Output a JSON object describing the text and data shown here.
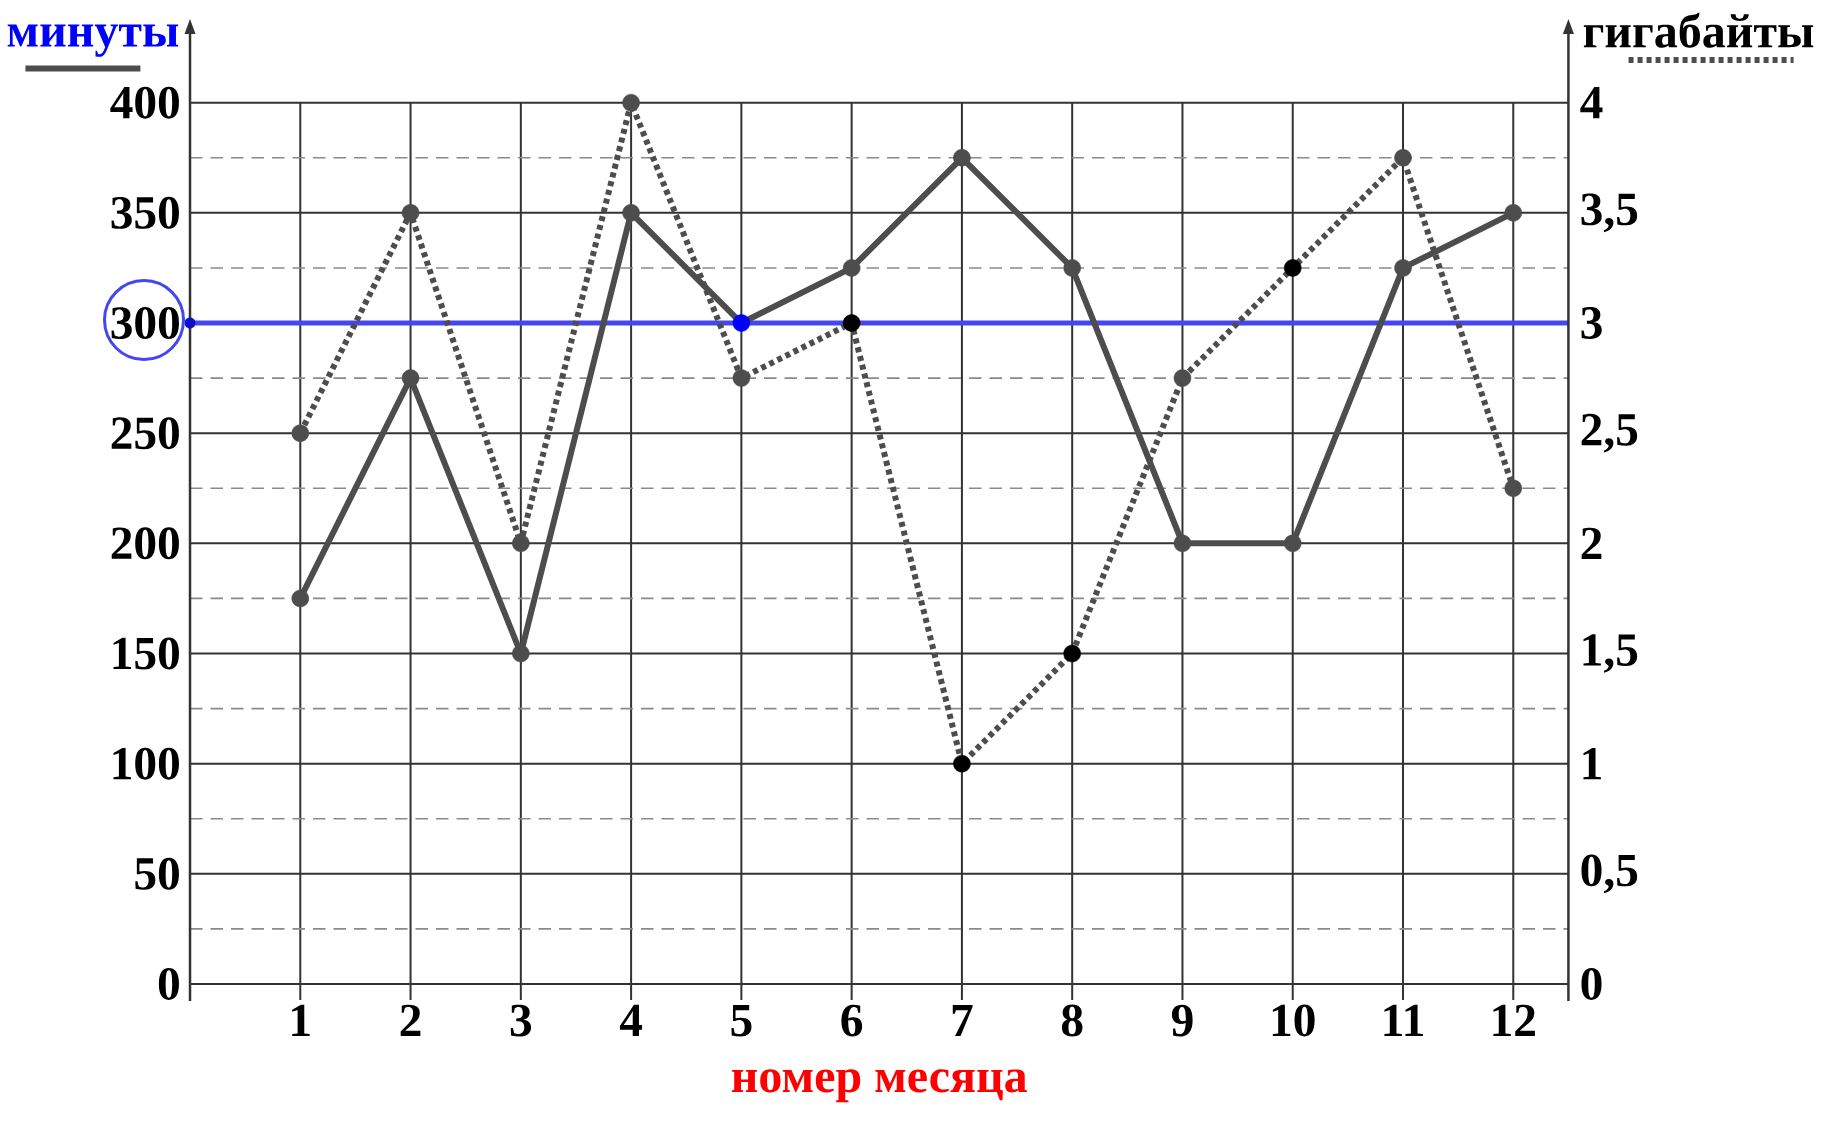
{
  "chart_data": {
    "type": "line",
    "xlabel": "номер месяца",
    "x": [
      1,
      2,
      3,
      4,
      5,
      6,
      7,
      8,
      9,
      10,
      11,
      12
    ],
    "xlim": [
      0,
      12.5
    ],
    "xticks": [
      1,
      2,
      3,
      4,
      5,
      6,
      7,
      8,
      9,
      10,
      11,
      12
    ],
    "ylim": [
      0,
      400
    ],
    "yticks": [
      0,
      {
        "value": 25,
        "label": null
      },
      50,
      {
        "value": 75,
        "label": null
      },
      100,
      {
        "value": 125,
        "label": null
      },
      150,
      {
        "value": 175,
        "label": null
      },
      200,
      {
        "value": 225,
        "label": null
      },
      250,
      {
        "value": 275,
        "label": null
      },
      300,
      {
        "value": 325,
        "label": null
      },
      350,
      {
        "value": 375,
        "label": null
      },
      400
    ],
    "y2lim": [
      0,
      4
    ],
    "y2ticks": [
      0,
      {
        "value": 0.5,
        "label": "0,5"
      },
      1,
      {
        "value": 1.5,
        "label": "1,5"
      },
      2,
      {
        "value": 2.5,
        "label": "2,5"
      },
      3,
      {
        "value": 3.5,
        "label": "3,5"
      },
      4
    ],
    "grid": true,
    "legend": "top",
    "marker": "circle",
    "ref_lines": [
      {
        "axis": "y",
        "value": 300,
        "color": "#4646f0"
      }
    ],
    "series": [
      {
        "name": "минуты",
        "color": "#4d4d4d",
        "line_style": "solid",
        "values": [
          175,
          275,
          150,
          350,
          300,
          325,
          375,
          325,
          200,
          200,
          325,
          350
        ],
        "colors": [
          "#4d4d4d",
          "#4d4d4d",
          "#4d4d4d",
          "#4d4d4d",
          "#0000ff",
          "#4d4d4d",
          "#4d4d4d",
          "#4d4d4d",
          "#4d4d4d",
          "#4d4d4d",
          "#4d4d4d",
          "#4d4d4d"
        ]
      },
      {
        "name": "гигабайты",
        "color": "#4d4d4d",
        "axis": "y2",
        "line_style": "dotted",
        "values": [
          2.5,
          3.5,
          2,
          4,
          2.75,
          3,
          1,
          1.5,
          2.75,
          3.25,
          3.75,
          2.25
        ],
        "colors": [
          "#4d4d4d",
          "#4d4d4d",
          "#4d4d4d",
          "#4d4d4d",
          "#4d4d4d",
          "#000000",
          "#000000",
          "#000000",
          "#4d4d4d",
          "#000000",
          "#4d4d4d",
          "#4d4d4d"
        ]
      }
    ]
  }
}
